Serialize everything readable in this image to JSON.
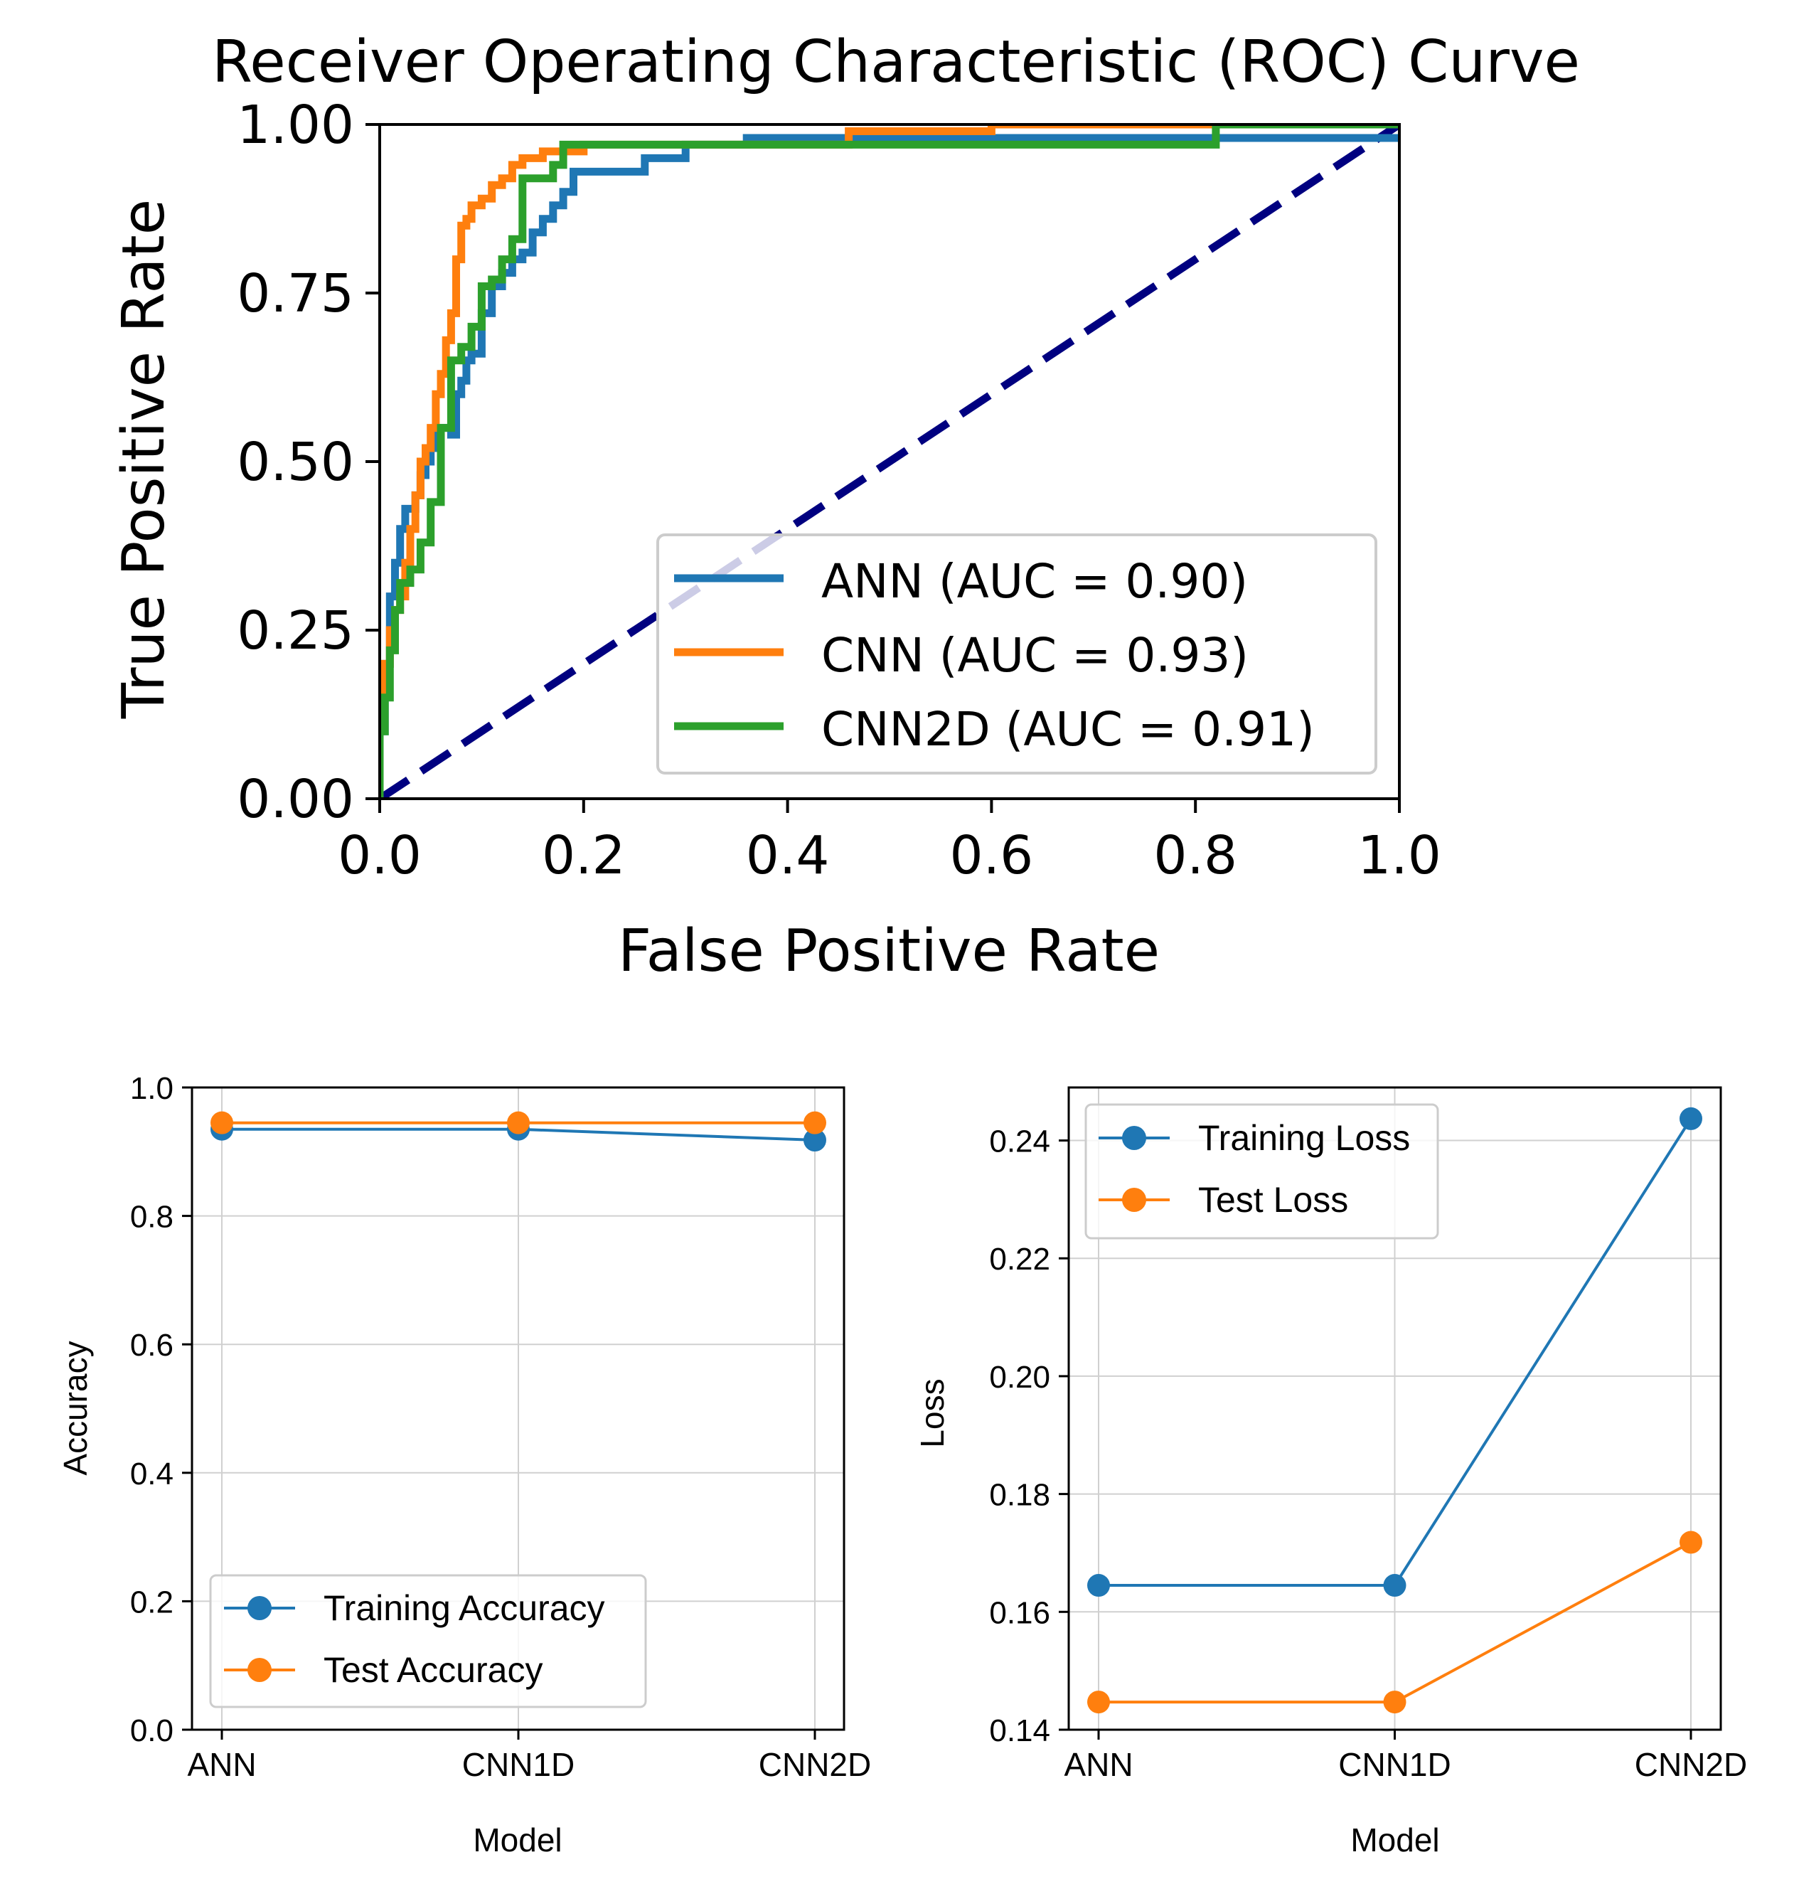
{
  "chart_data": [
    {
      "type": "line",
      "title": "Receiver Operating Characteristic (ROC) Curve",
      "xlabel": "False Positive Rate",
      "ylabel": "True Positive Rate",
      "xlim": [
        0.0,
        1.0
      ],
      "ylim": [
        0.0,
        1.0
      ],
      "xticks": [
        "0.0",
        "0.2",
        "0.4",
        "0.6",
        "0.8",
        "1.0"
      ],
      "yticks": [
        "0.00",
        "0.25",
        "0.50",
        "0.75",
        "1.00"
      ],
      "grid": false,
      "legend_position": "lower-right",
      "series": [
        {
          "name": "ANN (AUC = 0.90)",
          "color": "#1f77b4",
          "x": [
            0.0,
            0.0,
            0.005,
            0.005,
            0.01,
            0.01,
            0.015,
            0.015,
            0.02,
            0.02,
            0.025,
            0.025,
            0.03,
            0.03,
            0.035,
            0.035,
            0.04,
            0.04,
            0.045,
            0.045,
            0.05,
            0.05,
            0.055,
            0.055,
            0.06,
            0.06,
            0.065,
            0.065,
            0.07,
            0.07,
            0.075,
            0.075,
            0.08,
            0.08,
            0.085,
            0.085,
            0.09,
            0.09,
            0.1,
            0.1,
            0.11,
            0.11,
            0.12,
            0.12,
            0.13,
            0.13,
            0.14,
            0.14,
            0.15,
            0.15,
            0.16,
            0.16,
            0.17,
            0.17,
            0.18,
            0.18,
            0.19,
            0.19,
            0.2,
            0.2,
            0.21,
            0.21,
            0.26,
            0.26,
            0.3,
            0.3,
            0.36,
            0.36,
            1.0
          ],
          "y": [
            0.0,
            0.1,
            0.1,
            0.2,
            0.2,
            0.3,
            0.3,
            0.35,
            0.35,
            0.4,
            0.4,
            0.43,
            0.43,
            0.43,
            0.43,
            0.45,
            0.45,
            0.48,
            0.48,
            0.5,
            0.5,
            0.52,
            0.52,
            0.55,
            0.55,
            0.55,
            0.55,
            0.55,
            0.55,
            0.54,
            0.54,
            0.6,
            0.6,
            0.62,
            0.62,
            0.65,
            0.65,
            0.66,
            0.66,
            0.72,
            0.72,
            0.76,
            0.76,
            0.78,
            0.78,
            0.8,
            0.8,
            0.81,
            0.81,
            0.84,
            0.84,
            0.86,
            0.86,
            0.88,
            0.88,
            0.9,
            0.9,
            0.93,
            0.93,
            0.93,
            0.93,
            0.93,
            0.93,
            0.95,
            0.95,
            0.97,
            0.97,
            0.98,
            0.98
          ]
        },
        {
          "name": "CNN (AUC = 0.93)",
          "color": "#ff7f0e",
          "x": [
            0.0,
            0.0,
            0.005,
            0.005,
            0.01,
            0.01,
            0.015,
            0.015,
            0.02,
            0.02,
            0.025,
            0.025,
            0.03,
            0.03,
            0.035,
            0.035,
            0.04,
            0.04,
            0.045,
            0.045,
            0.05,
            0.05,
            0.055,
            0.055,
            0.06,
            0.06,
            0.065,
            0.065,
            0.07,
            0.07,
            0.075,
            0.075,
            0.08,
            0.08,
            0.085,
            0.085,
            0.09,
            0.09,
            0.1,
            0.1,
            0.11,
            0.11,
            0.12,
            0.12,
            0.13,
            0.13,
            0.14,
            0.14,
            0.16,
            0.16,
            0.2,
            0.2,
            0.46,
            0.46,
            0.6,
            0.6,
            0.82,
            0.82,
            1.0
          ],
          "y": [
            0.0,
            0.15,
            0.15,
            0.2,
            0.2,
            0.25,
            0.25,
            0.28,
            0.28,
            0.3,
            0.3,
            0.35,
            0.35,
            0.4,
            0.4,
            0.45,
            0.45,
            0.5,
            0.5,
            0.52,
            0.52,
            0.55,
            0.55,
            0.6,
            0.6,
            0.63,
            0.63,
            0.68,
            0.68,
            0.72,
            0.72,
            0.8,
            0.8,
            0.85,
            0.85,
            0.86,
            0.86,
            0.88,
            0.88,
            0.89,
            0.89,
            0.91,
            0.91,
            0.92,
            0.92,
            0.94,
            0.94,
            0.95,
            0.95,
            0.96,
            0.96,
            0.97,
            0.97,
            0.99,
            0.99,
            1.0,
            1.0,
            1.0,
            1.0
          ]
        },
        {
          "name": "CNN2D (AUC = 0.91)",
          "color": "#2ca02c",
          "x": [
            0.0,
            0.0,
            0.005,
            0.005,
            0.01,
            0.01,
            0.015,
            0.015,
            0.02,
            0.02,
            0.03,
            0.03,
            0.04,
            0.04,
            0.05,
            0.05,
            0.06,
            0.06,
            0.07,
            0.07,
            0.08,
            0.08,
            0.09,
            0.09,
            0.1,
            0.1,
            0.11,
            0.11,
            0.12,
            0.12,
            0.13,
            0.13,
            0.14,
            0.14,
            0.16,
            0.16,
            0.17,
            0.17,
            0.18,
            0.18,
            0.74,
            0.74,
            0.82,
            0.82,
            1.0
          ],
          "y": [
            0.0,
            0.1,
            0.1,
            0.15,
            0.15,
            0.22,
            0.22,
            0.28,
            0.28,
            0.32,
            0.32,
            0.34,
            0.34,
            0.38,
            0.38,
            0.44,
            0.44,
            0.55,
            0.55,
            0.65,
            0.65,
            0.67,
            0.67,
            0.7,
            0.7,
            0.76,
            0.76,
            0.77,
            0.77,
            0.8,
            0.8,
            0.83,
            0.83,
            0.92,
            0.92,
            0.92,
            0.92,
            0.94,
            0.94,
            0.97,
            0.97,
            0.97,
            0.97,
            1.0,
            1.0
          ]
        },
        {
          "name": "chance",
          "color": "#000080",
          "style": "dashed",
          "x": [
            0.0,
            1.0
          ],
          "y": [
            0.0,
            1.0
          ]
        }
      ]
    },
    {
      "type": "line",
      "title": "",
      "xlabel": "Model",
      "ylabel": "Accuracy",
      "categories": [
        "ANN",
        "CNN1D",
        "CNN2D"
      ],
      "ylim": [
        0.0,
        1.0
      ],
      "yticks": [
        "0.0",
        "0.2",
        "0.4",
        "0.6",
        "0.8",
        "1.0"
      ],
      "grid": true,
      "legend_position": "lower-left",
      "series": [
        {
          "name": "Training Accuracy",
          "color": "#1f77b4",
          "values": [
            0.935,
            0.935,
            0.918
          ]
        },
        {
          "name": "Test Accuracy",
          "color": "#ff7f0e",
          "values": [
            0.945,
            0.945,
            0.945
          ]
        }
      ]
    },
    {
      "type": "line",
      "title": "",
      "xlabel": "Model",
      "ylabel": "Loss",
      "categories": [
        "ANN",
        "CNN1D",
        "CNN2D"
      ],
      "ylim": [
        0.14,
        0.249
      ],
      "yticks": [
        "0.14",
        "0.16",
        "0.18",
        "0.20",
        "0.22",
        "0.24"
      ],
      "grid": true,
      "legend_position": "upper-left",
      "series": [
        {
          "name": "Training Loss",
          "color": "#1f77b4",
          "values": [
            0.1645,
            0.1645,
            0.2437
          ]
        },
        {
          "name": "Test Loss",
          "color": "#ff7f0e",
          "values": [
            0.1447,
            0.1447,
            0.1718
          ]
        }
      ]
    }
  ]
}
